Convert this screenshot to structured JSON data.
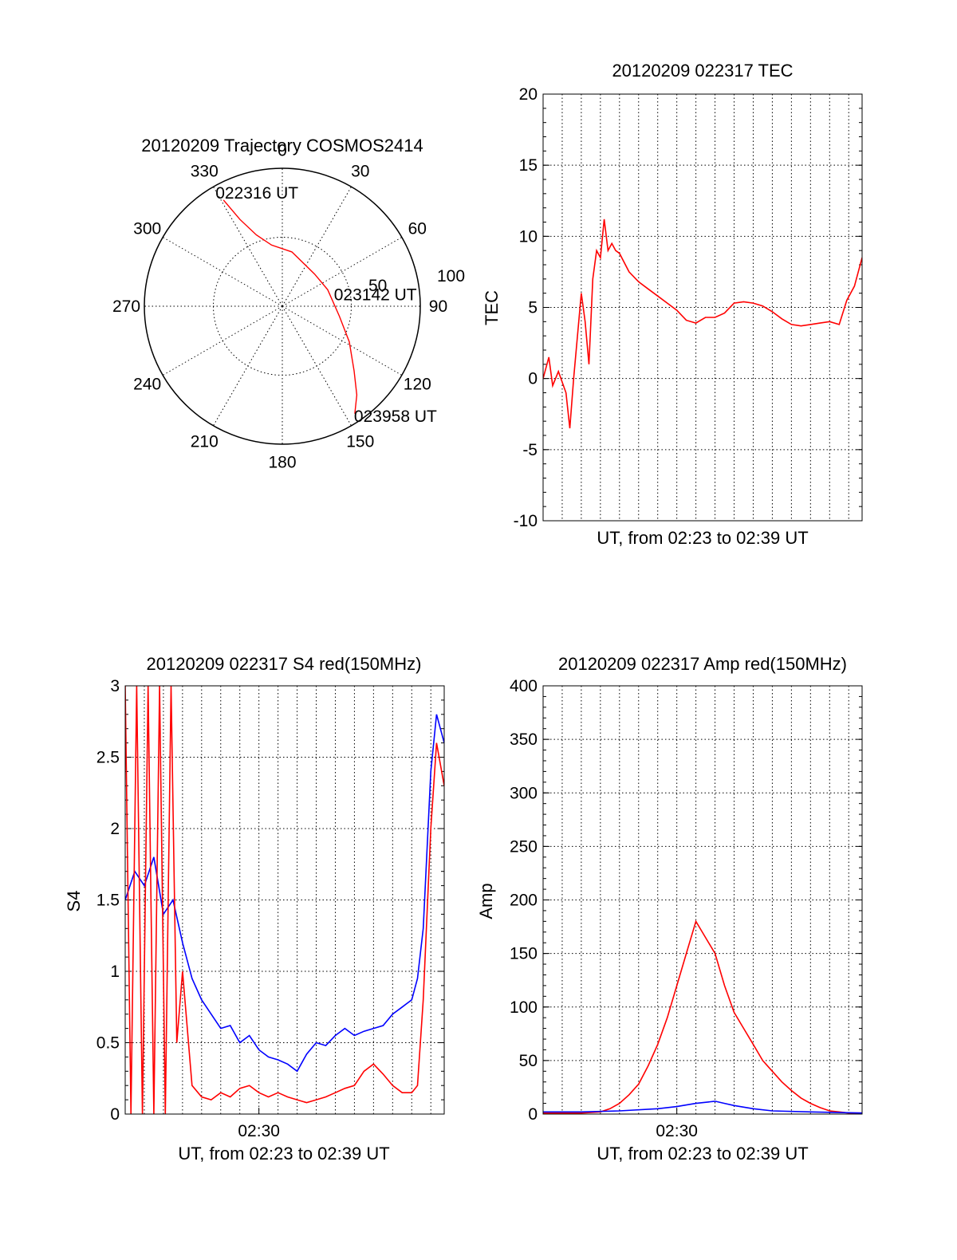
{
  "colors": {
    "red": "#ff0000",
    "blue": "#0000ff",
    "grid": "#000000"
  },
  "chart_data": [
    {
      "id": "trajectory",
      "type": "polar",
      "title": "20120209 Trajectory COSMOS2414",
      "azimuth_labels": [
        "0",
        "30",
        "60",
        "90",
        "120",
        "150",
        "180",
        "210",
        "240",
        "270",
        "300",
        "330"
      ],
      "zenith_labels": [
        "50",
        "100"
      ],
      "zenith_max": 100,
      "series": [
        {
          "color": "#ff0000",
          "points": [
            [
              331,
              88
            ],
            [
              334,
              70
            ],
            [
              340,
              55
            ],
            [
              350,
              45
            ],
            [
              10,
              40
            ],
            [
              45,
              33
            ],
            [
              70,
              35
            ],
            [
              100,
              42
            ],
            [
              118,
              55
            ],
            [
              132,
              70
            ],
            [
              140,
              84
            ],
            [
              146,
              94
            ]
          ]
        }
      ],
      "annotations": [
        {
          "text": "022316 UT",
          "az": 331,
          "zen": 88
        },
        {
          "text": "023142 UT",
          "az": 80,
          "zen": 38
        },
        {
          "text": "023958 UT",
          "az": 146,
          "zen": 94
        }
      ]
    },
    {
      "id": "tec",
      "type": "line",
      "title": "20120209 022317 TEC",
      "ylabel": "TEC",
      "xlabel": "UT, from 02:23 to 02:39 UT",
      "xlim": [
        0,
        16.7
      ],
      "ylim": [
        -10,
        20
      ],
      "yticks": [
        -10,
        -5,
        0,
        5,
        10,
        15,
        20
      ],
      "xticks": [],
      "series": [
        {
          "color": "#ff0000",
          "x": [
            0,
            0.3,
            0.5,
            0.8,
            1.2,
            1.4,
            1.6,
            1.8,
            2.0,
            2.2,
            2.4,
            2.6,
            2.8,
            3.0,
            3.2,
            3.4,
            3.6,
            3.8,
            4.0,
            4.5,
            5.0,
            5.5,
            6.0,
            6.5,
            7.0,
            7.5,
            8.0,
            8.5,
            9.0,
            9.5,
            10.0,
            10.5,
            11.0,
            11.5,
            12.0,
            12.5,
            13.0,
            13.5,
            14.0,
            14.5,
            15.0,
            15.5,
            15.9,
            16.3,
            16.7
          ],
          "y": [
            0,
            1.5,
            -0.5,
            0.5,
            -1.0,
            -3.5,
            0,
            3.0,
            6.0,
            4.0,
            1.0,
            7.0,
            9.0,
            8.5,
            11.2,
            9.0,
            9.5,
            9.0,
            8.8,
            7.5,
            6.8,
            6.3,
            5.8,
            5.3,
            4.8,
            4.1,
            3.9,
            4.3,
            4.3,
            4.6,
            5.3,
            5.4,
            5.3,
            5.1,
            4.7,
            4.2,
            3.8,
            3.7,
            3.8,
            3.9,
            4.0,
            3.8,
            5.5,
            6.5,
            8.5
          ]
        }
      ]
    },
    {
      "id": "s4",
      "type": "line",
      "title": "20120209 022317 S4 red(150MHz)",
      "ylabel": "S4",
      "xlabel": "UT, from 02:23 to 02:39 UT",
      "xlim": [
        0,
        16.7
      ],
      "ylim": [
        0,
        3
      ],
      "yticks": [
        0,
        0.5,
        1,
        1.5,
        2,
        2.5,
        3
      ],
      "ytick_labels": [
        "0",
        "0.5",
        "1",
        "1.5",
        "2",
        "2.5",
        "3"
      ],
      "xticks": [
        7
      ],
      "xtick_labels": [
        "02:30"
      ],
      "series": [
        {
          "color": "#0000ff",
          "x": [
            0,
            0.5,
            1.0,
            1.5,
            2.0,
            2.5,
            3.0,
            3.5,
            4.0,
            4.5,
            5.0,
            5.5,
            6.0,
            6.5,
            7.0,
            7.5,
            8.0,
            8.5,
            9.0,
            9.5,
            10.0,
            10.5,
            11.0,
            11.5,
            12.0,
            12.5,
            13.0,
            13.5,
            14.0,
            14.5,
            15.0,
            15.3,
            15.6,
            16.0,
            16.3,
            16.7
          ],
          "y": [
            1.5,
            1.7,
            1.6,
            1.8,
            1.4,
            1.5,
            1.2,
            0.95,
            0.8,
            0.7,
            0.6,
            0.62,
            0.5,
            0.55,
            0.45,
            0.4,
            0.38,
            0.35,
            0.3,
            0.42,
            0.5,
            0.48,
            0.55,
            0.6,
            0.55,
            0.58,
            0.6,
            0.62,
            0.7,
            0.75,
            0.8,
            0.95,
            1.3,
            2.4,
            2.8,
            2.6
          ]
        },
        {
          "color": "#ff0000",
          "x": [
            0,
            0.3,
            0.6,
            0.9,
            1.2,
            1.5,
            1.8,
            2.1,
            2.4,
            2.7,
            3.0,
            3.5,
            4.0,
            4.5,
            5.0,
            5.5,
            6.0,
            6.5,
            7.0,
            7.5,
            8.0,
            8.5,
            9.0,
            9.5,
            10.0,
            10.5,
            11.0,
            11.5,
            12.0,
            12.5,
            13.0,
            13.5,
            14.0,
            14.5,
            15.0,
            15.3,
            15.6,
            16.0,
            16.3,
            16.7
          ],
          "y": [
            3,
            0,
            3,
            0,
            3,
            0,
            3,
            0,
            3,
            0.5,
            1.0,
            0.2,
            0.12,
            0.1,
            0.15,
            0.12,
            0.18,
            0.2,
            0.15,
            0.12,
            0.15,
            0.12,
            0.1,
            0.08,
            0.1,
            0.12,
            0.15,
            0.18,
            0.2,
            0.3,
            0.35,
            0.28,
            0.2,
            0.15,
            0.15,
            0.2,
            0.8,
            2.0,
            2.6,
            2.3
          ]
        }
      ]
    },
    {
      "id": "amp",
      "type": "line",
      "title": "20120209 022317 Amp red(150MHz)",
      "ylabel": "Amp",
      "xlabel": "UT, from 02:23 to 02:39 UT",
      "xlim": [
        0,
        16.7
      ],
      "ylim": [
        0,
        400
      ],
      "yticks": [
        0,
        50,
        100,
        150,
        200,
        250,
        300,
        350,
        400
      ],
      "xticks": [
        7
      ],
      "xtick_labels": [
        "02:30"
      ],
      "series": [
        {
          "color": "#ff0000",
          "x": [
            0,
            1,
            2,
            3,
            3.5,
            4,
            4.5,
            5,
            5.5,
            6,
            6.5,
            7,
            7.5,
            8,
            8.5,
            9,
            9.5,
            10,
            10.5,
            11,
            11.5,
            12,
            12.5,
            13,
            13.5,
            14,
            14.5,
            15,
            15.5,
            16,
            16.7
          ],
          "y": [
            1,
            1,
            1,
            2,
            5,
            10,
            18,
            28,
            45,
            65,
            90,
            120,
            150,
            180,
            165,
            150,
            120,
            95,
            80,
            65,
            50,
            40,
            30,
            22,
            15,
            10,
            6,
            3,
            2,
            1,
            1
          ]
        },
        {
          "color": "#0000ff",
          "x": [
            0,
            2,
            4,
            6,
            7,
            8,
            9,
            9.5,
            10,
            11,
            12,
            14,
            16.7
          ],
          "y": [
            2,
            2,
            3,
            5,
            7,
            10,
            12,
            10,
            8,
            5,
            3,
            2,
            1
          ]
        }
      ]
    }
  ]
}
